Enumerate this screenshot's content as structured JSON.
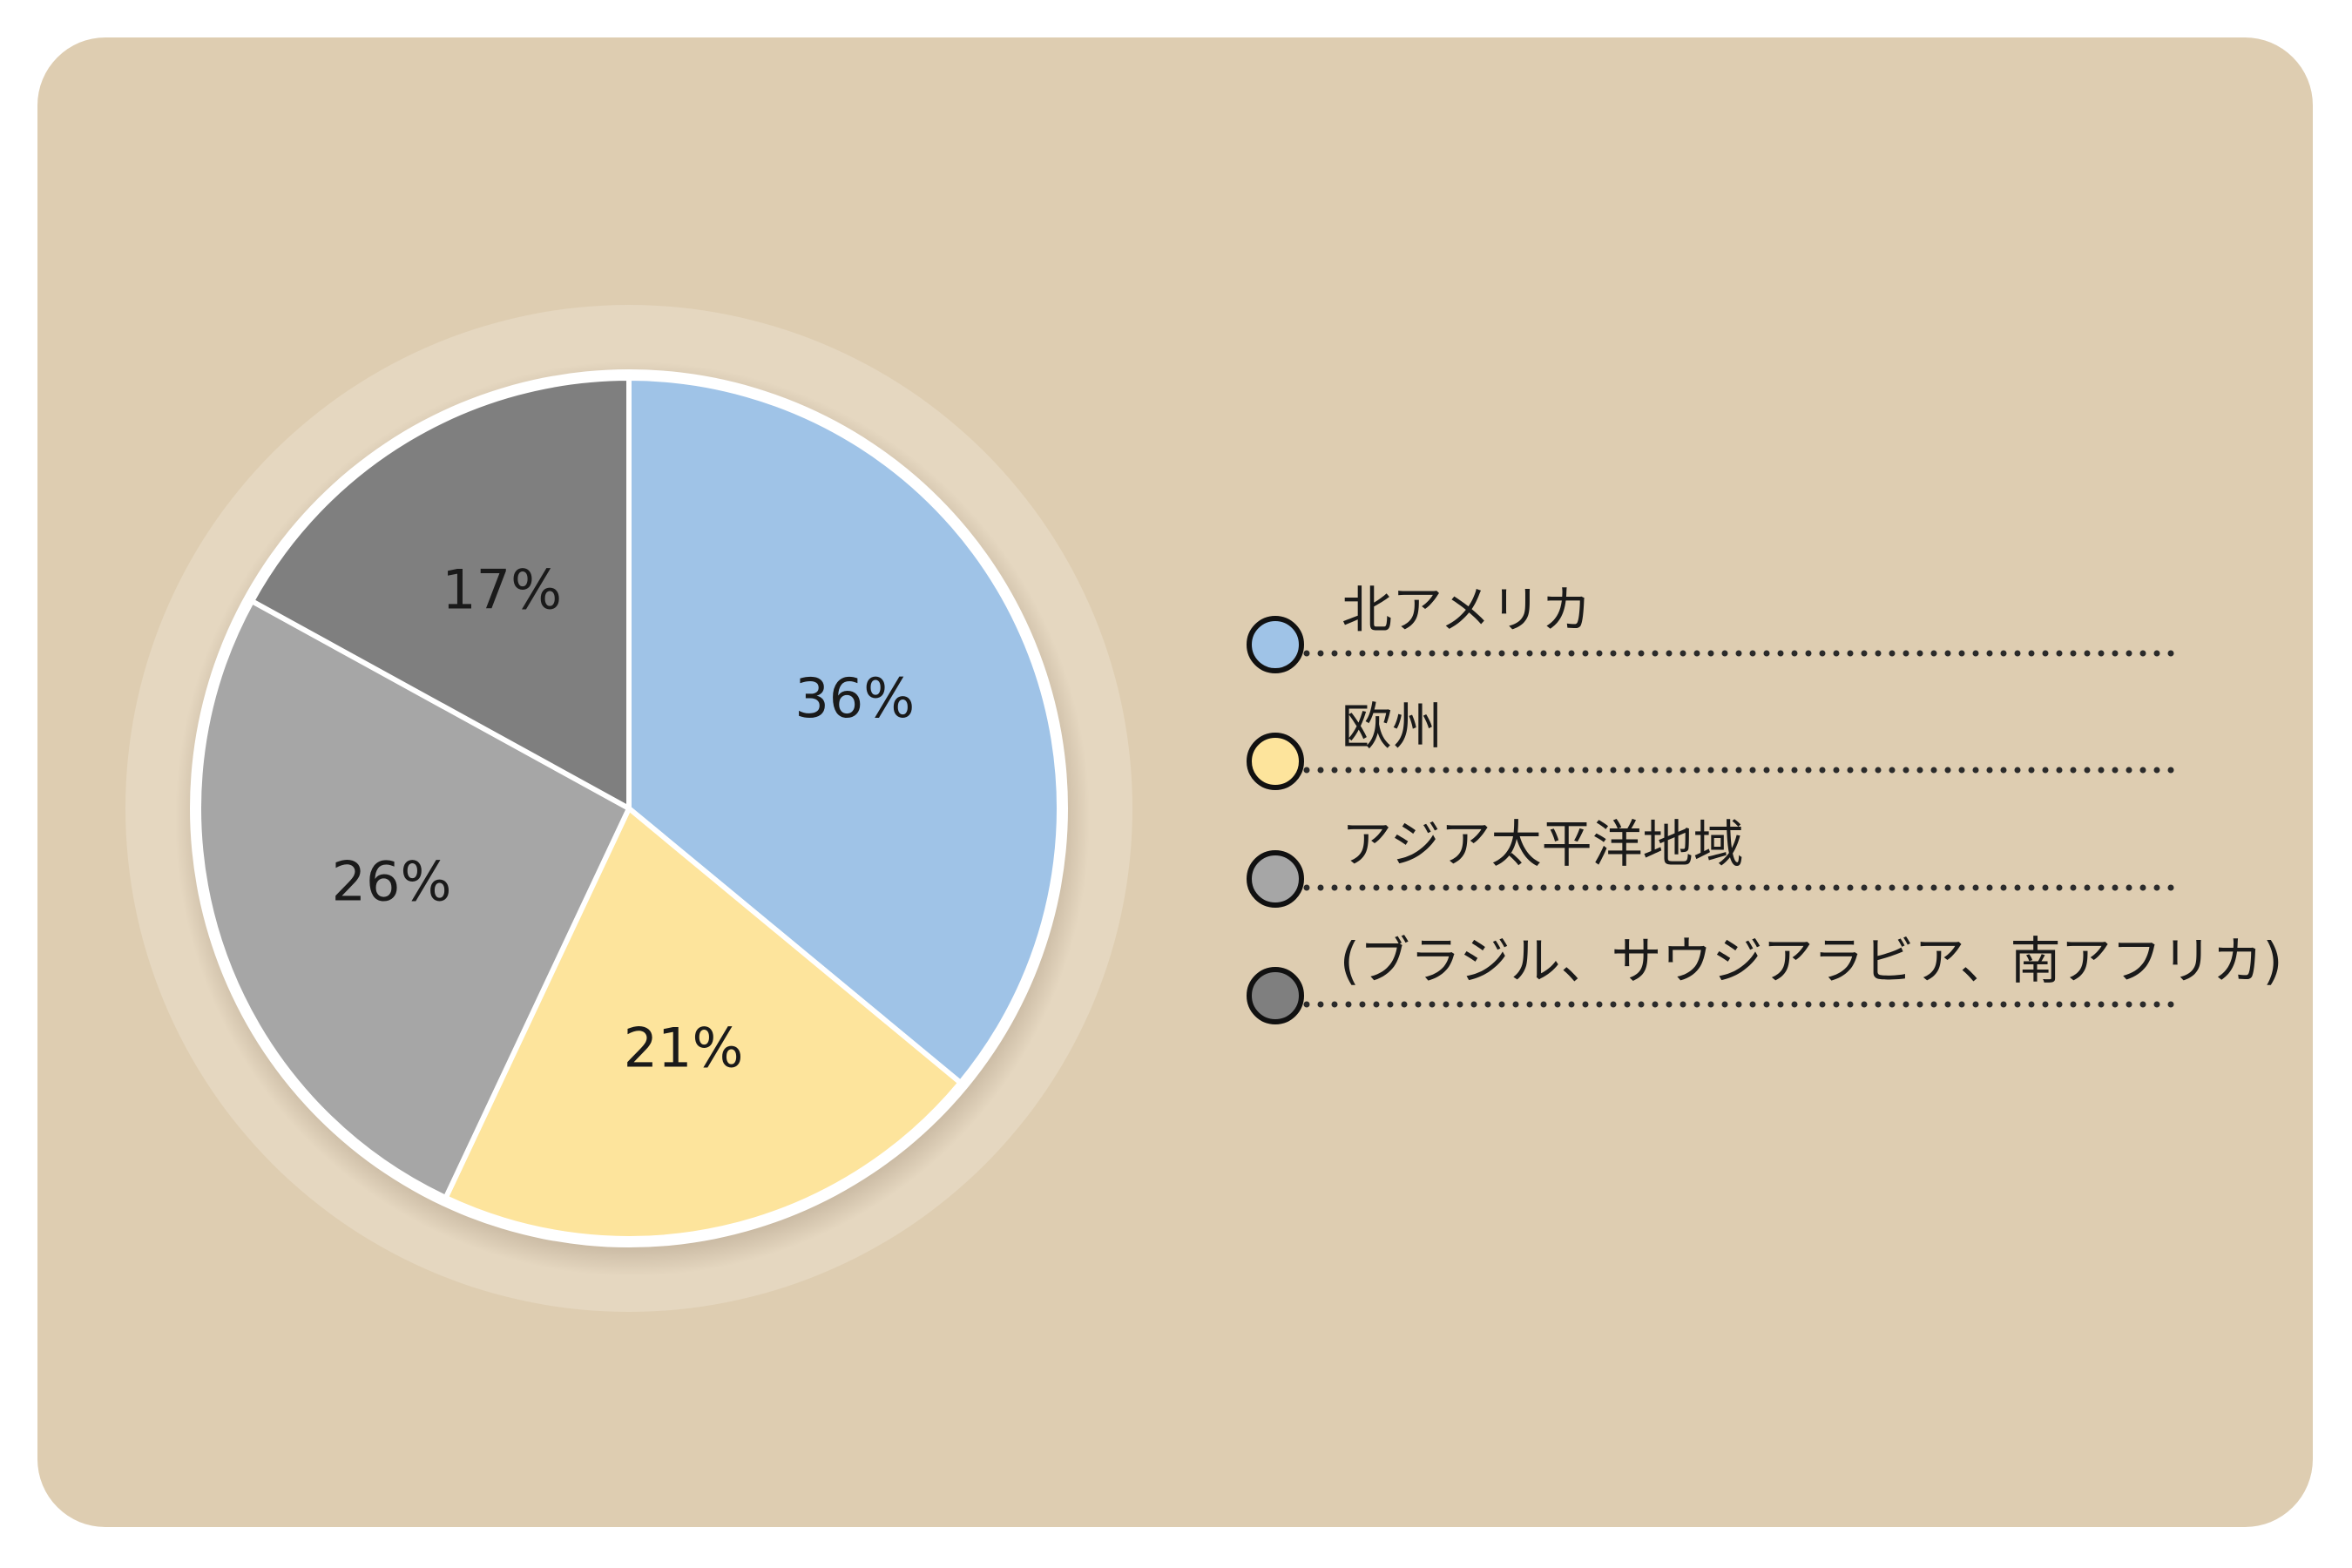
{
  "chart_data": {
    "type": "pie",
    "categories": [
      "北アメリカ",
      "欧州",
      "アジア太平洋地域",
      "(ブラジル、サウジアラビア、南アフリカ)"
    ],
    "values": [
      36,
      21,
      26,
      17
    ],
    "labels": [
      "36%",
      "21%",
      "26%",
      "17%"
    ],
    "colors": [
      "#9fc3e7",
      "#fde49c",
      "#a6a6a6",
      "#7f7f7f"
    ],
    "start_angle": "12 o'clock",
    "direction": "clockwise",
    "legend_position": "right"
  },
  "colors": {
    "panel": "#decdb1",
    "halo": "#e5d7c0",
    "slice_border": "#ffffff"
  }
}
